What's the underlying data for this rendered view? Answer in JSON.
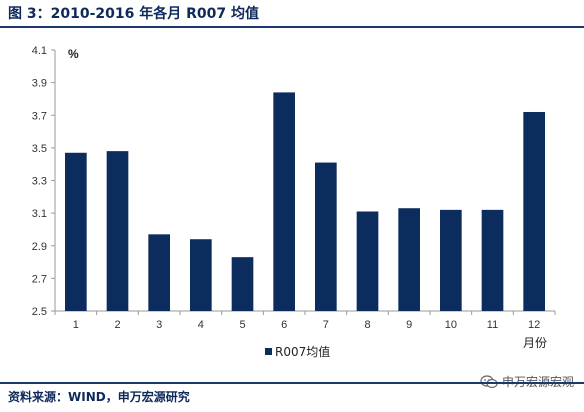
{
  "header": {
    "title": "图 3：2010-2016 年各月 R007 均值"
  },
  "footer": {
    "source": "资料来源：WIND，申万宏源研究",
    "watermark": "申万宏源宏观",
    "watermark_icon": "wechat-icon"
  },
  "chart_data": {
    "type": "bar",
    "categories": [
      "1",
      "2",
      "3",
      "4",
      "5",
      "6",
      "7",
      "8",
      "9",
      "10",
      "11",
      "12"
    ],
    "series": [
      {
        "name": "R007均值",
        "values": [
          3.47,
          3.48,
          2.97,
          2.94,
          2.83,
          3.84,
          3.41,
          3.11,
          3.13,
          3.12,
          3.12,
          3.72
        ]
      }
    ],
    "ylim": [
      2.5,
      4.1
    ],
    "yticks": [
      "2.5",
      "2.7",
      "2.9",
      "3.1",
      "3.3",
      "3.5",
      "3.7",
      "3.9",
      "4.1"
    ],
    "ylabel": "%",
    "xlabel": "月份",
    "grid": false,
    "legend": "bottom-center",
    "colors": {
      "bar": "#0b2c5c",
      "axis": "#9a9a9a"
    }
  }
}
